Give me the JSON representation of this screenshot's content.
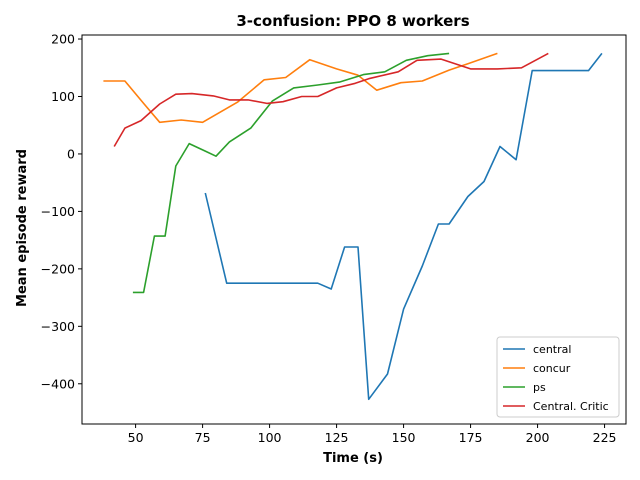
{
  "chart_data": {
    "type": "line",
    "title": "3-confusion: PPO 8 workers",
    "xlabel": "Time (s)",
    "ylabel": "Mean episode reward",
    "xlim": [
      30,
      233
    ],
    "ylim": [
      -470,
      207
    ],
    "xticks": [
      50,
      75,
      100,
      125,
      150,
      175,
      200,
      225
    ],
    "yticks": [
      -400,
      -300,
      -200,
      -100,
      0,
      100,
      200
    ],
    "grid": false,
    "legend_position": "lower right",
    "series": [
      {
        "name": "central",
        "color": "#1f77b4",
        "points": [
          [
            76,
            -68
          ],
          [
            84,
            -225
          ],
          [
            118,
            -225
          ],
          [
            123,
            -235
          ],
          [
            128,
            -162
          ],
          [
            133,
            -162
          ],
          [
            137,
            -427
          ],
          [
            144,
            -383
          ],
          [
            150,
            -270
          ],
          [
            157,
            -195
          ],
          [
            163,
            -122
          ],
          [
            167,
            -122
          ],
          [
            174,
            -74
          ],
          [
            180,
            -48
          ],
          [
            186,
            13
          ],
          [
            192,
            -10
          ],
          [
            198,
            145
          ],
          [
            219,
            145
          ],
          [
            224,
            175
          ]
        ]
      },
      {
        "name": "concur",
        "color": "#ff7f0e",
        "points": [
          [
            38,
            127
          ],
          [
            46,
            127
          ],
          [
            53,
            88
          ],
          [
            59,
            55
          ],
          [
            67,
            59
          ],
          [
            75,
            55
          ],
          [
            88,
            90
          ],
          [
            98,
            129
          ],
          [
            106,
            133
          ],
          [
            115,
            164
          ],
          [
            125,
            148
          ],
          [
            133,
            137
          ],
          [
            140,
            111
          ],
          [
            149,
            124
          ],
          [
            157,
            127
          ],
          [
            167,
            146
          ],
          [
            174,
            157
          ],
          [
            185,
            175
          ]
        ]
      },
      {
        "name": "ps",
        "color": "#2ca02c",
        "points": [
          [
            49,
            -241
          ],
          [
            53,
            -241
          ],
          [
            57,
            -143
          ],
          [
            61,
            -143
          ],
          [
            65,
            -21
          ],
          [
            70,
            18
          ],
          [
            76,
            5
          ],
          [
            80,
            -4
          ],
          [
            85,
            21
          ],
          [
            93,
            45
          ],
          [
            101,
            92
          ],
          [
            109,
            115
          ],
          [
            118,
            120
          ],
          [
            126,
            125
          ],
          [
            135,
            138
          ],
          [
            143,
            143
          ],
          [
            151,
            163
          ],
          [
            159,
            171
          ],
          [
            167,
            175
          ]
        ]
      },
      {
        "name": "Central. Critic",
        "color": "#d62728",
        "points": [
          [
            42,
            13
          ],
          [
            46,
            45
          ],
          [
            52,
            58
          ],
          [
            59,
            87
          ],
          [
            65,
            104
          ],
          [
            71,
            105
          ],
          [
            79,
            101
          ],
          [
            85,
            94
          ],
          [
            92,
            94
          ],
          [
            99,
            88
          ],
          [
            105,
            91
          ],
          [
            112,
            100
          ],
          [
            118,
            100
          ],
          [
            125,
            115
          ],
          [
            132,
            123
          ],
          [
            137,
            131
          ],
          [
            148,
            143
          ],
          [
            155,
            163
          ],
          [
            164,
            165
          ],
          [
            175,
            148
          ],
          [
            185,
            148
          ],
          [
            194,
            150
          ],
          [
            204,
            175
          ]
        ]
      }
    ]
  }
}
